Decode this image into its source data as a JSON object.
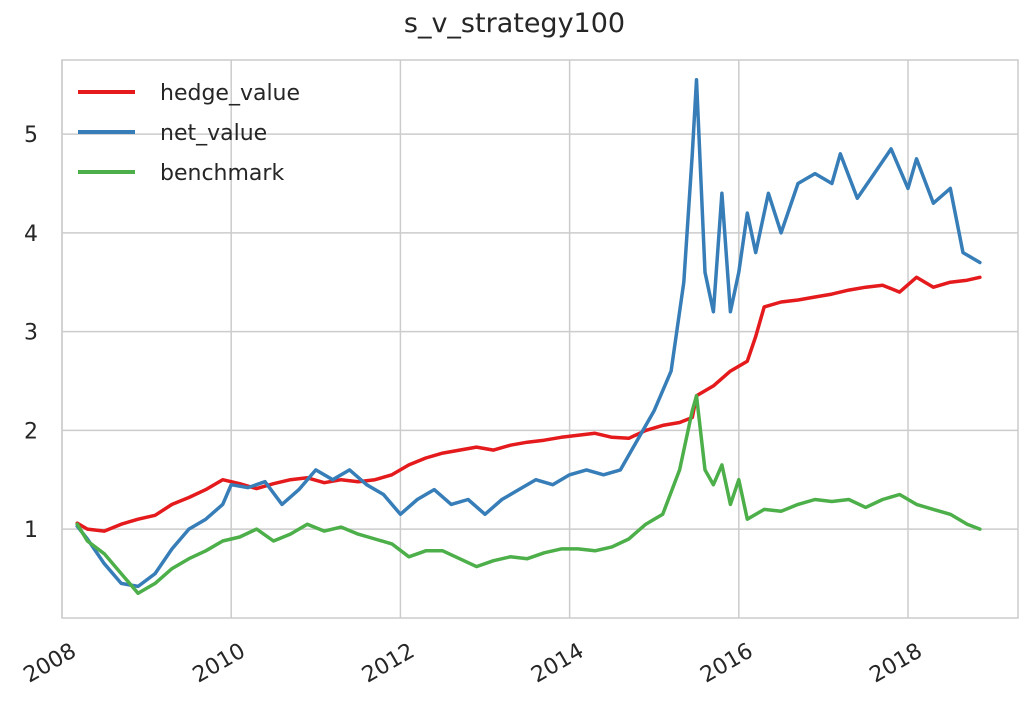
{
  "chart_data": {
    "type": "line",
    "title": "s_v_strategy100",
    "xlabel": "",
    "ylabel": "",
    "xlim": [
      2008,
      2019.3
    ],
    "ylim": [
      0.1,
      5.75
    ],
    "x_ticks": [
      2008,
      2010,
      2012,
      2014,
      2016,
      2018
    ],
    "x_tick_labels": [
      "2008",
      "2010",
      "2012",
      "2014",
      "2016",
      "2018"
    ],
    "y_ticks": [
      1,
      2,
      3,
      4,
      5
    ],
    "y_tick_labels": [
      "1",
      "2",
      "3",
      "4",
      "5"
    ],
    "grid": true,
    "legend_position": "top-left",
    "series": [
      {
        "name": "hedge_value",
        "color": "#e41a1c",
        "points": [
          [
            2008.18,
            1.06
          ],
          [
            2008.3,
            1.0
          ],
          [
            2008.5,
            0.98
          ],
          [
            2008.7,
            1.05
          ],
          [
            2008.9,
            1.1
          ],
          [
            2009.1,
            1.14
          ],
          [
            2009.3,
            1.25
          ],
          [
            2009.5,
            1.32
          ],
          [
            2009.7,
            1.4
          ],
          [
            2009.9,
            1.5
          ],
          [
            2010.1,
            1.46
          ],
          [
            2010.3,
            1.41
          ],
          [
            2010.5,
            1.46
          ],
          [
            2010.7,
            1.5
          ],
          [
            2010.9,
            1.52
          ],
          [
            2011.1,
            1.47
          ],
          [
            2011.3,
            1.5
          ],
          [
            2011.5,
            1.48
          ],
          [
            2011.7,
            1.5
          ],
          [
            2011.9,
            1.55
          ],
          [
            2012.1,
            1.65
          ],
          [
            2012.3,
            1.72
          ],
          [
            2012.5,
            1.77
          ],
          [
            2012.7,
            1.8
          ],
          [
            2012.9,
            1.83
          ],
          [
            2013.1,
            1.8
          ],
          [
            2013.3,
            1.85
          ],
          [
            2013.5,
            1.88
          ],
          [
            2013.7,
            1.9
          ],
          [
            2013.9,
            1.93
          ],
          [
            2014.1,
            1.95
          ],
          [
            2014.3,
            1.97
          ],
          [
            2014.5,
            1.93
          ],
          [
            2014.7,
            1.92
          ],
          [
            2014.9,
            2.0
          ],
          [
            2015.1,
            2.05
          ],
          [
            2015.3,
            2.08
          ],
          [
            2015.45,
            2.13
          ],
          [
            2015.5,
            2.35
          ],
          [
            2015.7,
            2.45
          ],
          [
            2015.9,
            2.6
          ],
          [
            2016.1,
            2.7
          ],
          [
            2016.2,
            2.95
          ],
          [
            2016.3,
            3.25
          ],
          [
            2016.5,
            3.3
          ],
          [
            2016.7,
            3.32
          ],
          [
            2016.9,
            3.35
          ],
          [
            2017.1,
            3.38
          ],
          [
            2017.3,
            3.42
          ],
          [
            2017.5,
            3.45
          ],
          [
            2017.7,
            3.47
          ],
          [
            2017.9,
            3.4
          ],
          [
            2018.1,
            3.55
          ],
          [
            2018.3,
            3.45
          ],
          [
            2018.5,
            3.5
          ],
          [
            2018.7,
            3.52
          ],
          [
            2018.85,
            3.55
          ]
        ]
      },
      {
        "name": "net_value",
        "color": "#377eb8",
        "points": [
          [
            2008.18,
            1.03
          ],
          [
            2008.3,
            0.9
          ],
          [
            2008.5,
            0.65
          ],
          [
            2008.7,
            0.45
          ],
          [
            2008.9,
            0.42
          ],
          [
            2009.1,
            0.55
          ],
          [
            2009.3,
            0.8
          ],
          [
            2009.5,
            1.0
          ],
          [
            2009.7,
            1.1
          ],
          [
            2009.9,
            1.25
          ],
          [
            2010.0,
            1.45
          ],
          [
            2010.2,
            1.42
          ],
          [
            2010.4,
            1.48
          ],
          [
            2010.6,
            1.25
          ],
          [
            2010.8,
            1.4
          ],
          [
            2011.0,
            1.6
          ],
          [
            2011.2,
            1.5
          ],
          [
            2011.4,
            1.6
          ],
          [
            2011.6,
            1.45
          ],
          [
            2011.8,
            1.35
          ],
          [
            2012.0,
            1.15
          ],
          [
            2012.2,
            1.3
          ],
          [
            2012.4,
            1.4
          ],
          [
            2012.6,
            1.25
          ],
          [
            2012.8,
            1.3
          ],
          [
            2013.0,
            1.15
          ],
          [
            2013.2,
            1.3
          ],
          [
            2013.4,
            1.4
          ],
          [
            2013.6,
            1.5
          ],
          [
            2013.8,
            1.45
          ],
          [
            2014.0,
            1.55
          ],
          [
            2014.2,
            1.6
          ],
          [
            2014.4,
            1.55
          ],
          [
            2014.6,
            1.6
          ],
          [
            2014.8,
            1.9
          ],
          [
            2015.0,
            2.2
          ],
          [
            2015.2,
            2.6
          ],
          [
            2015.35,
            3.5
          ],
          [
            2015.45,
            4.8
          ],
          [
            2015.5,
            5.55
          ],
          [
            2015.6,
            3.6
          ],
          [
            2015.7,
            3.2
          ],
          [
            2015.8,
            4.4
          ],
          [
            2015.9,
            3.2
          ],
          [
            2016.0,
            3.6
          ],
          [
            2016.1,
            4.2
          ],
          [
            2016.2,
            3.8
          ],
          [
            2016.35,
            4.4
          ],
          [
            2016.5,
            4.0
          ],
          [
            2016.7,
            4.5
          ],
          [
            2016.9,
            4.6
          ],
          [
            2017.1,
            4.5
          ],
          [
            2017.2,
            4.8
          ],
          [
            2017.4,
            4.35
          ],
          [
            2017.6,
            4.6
          ],
          [
            2017.8,
            4.85
          ],
          [
            2018.0,
            4.45
          ],
          [
            2018.1,
            4.75
          ],
          [
            2018.3,
            4.3
          ],
          [
            2018.5,
            4.45
          ],
          [
            2018.65,
            3.8
          ],
          [
            2018.85,
            3.7
          ]
        ]
      },
      {
        "name": "benchmark",
        "color": "#4daf4a",
        "points": [
          [
            2008.18,
            1.05
          ],
          [
            2008.3,
            0.88
          ],
          [
            2008.5,
            0.75
          ],
          [
            2008.7,
            0.55
          ],
          [
            2008.9,
            0.35
          ],
          [
            2009.1,
            0.45
          ],
          [
            2009.3,
            0.6
          ],
          [
            2009.5,
            0.7
          ],
          [
            2009.7,
            0.78
          ],
          [
            2009.9,
            0.88
          ],
          [
            2010.1,
            0.92
          ],
          [
            2010.3,
            1.0
          ],
          [
            2010.5,
            0.88
          ],
          [
            2010.7,
            0.95
          ],
          [
            2010.9,
            1.05
          ],
          [
            2011.1,
            0.98
          ],
          [
            2011.3,
            1.02
          ],
          [
            2011.5,
            0.95
          ],
          [
            2011.7,
            0.9
          ],
          [
            2011.9,
            0.85
          ],
          [
            2012.1,
            0.72
          ],
          [
            2012.3,
            0.78
          ],
          [
            2012.5,
            0.78
          ],
          [
            2012.7,
            0.7
          ],
          [
            2012.9,
            0.62
          ],
          [
            2013.1,
            0.68
          ],
          [
            2013.3,
            0.72
          ],
          [
            2013.5,
            0.7
          ],
          [
            2013.7,
            0.76
          ],
          [
            2013.9,
            0.8
          ],
          [
            2014.1,
            0.8
          ],
          [
            2014.3,
            0.78
          ],
          [
            2014.5,
            0.82
          ],
          [
            2014.7,
            0.9
          ],
          [
            2014.9,
            1.05
          ],
          [
            2015.1,
            1.15
          ],
          [
            2015.3,
            1.6
          ],
          [
            2015.45,
            2.2
          ],
          [
            2015.5,
            2.35
          ],
          [
            2015.6,
            1.6
          ],
          [
            2015.7,
            1.45
          ],
          [
            2015.8,
            1.65
          ],
          [
            2015.9,
            1.25
          ],
          [
            2016.0,
            1.5
          ],
          [
            2016.1,
            1.1
          ],
          [
            2016.3,
            1.2
          ],
          [
            2016.5,
            1.18
          ],
          [
            2016.7,
            1.25
          ],
          [
            2016.9,
            1.3
          ],
          [
            2017.1,
            1.28
          ],
          [
            2017.3,
            1.3
          ],
          [
            2017.5,
            1.22
          ],
          [
            2017.7,
            1.3
          ],
          [
            2017.9,
            1.35
          ],
          [
            2018.1,
            1.25
          ],
          [
            2018.3,
            1.2
          ],
          [
            2018.5,
            1.15
          ],
          [
            2018.7,
            1.05
          ],
          [
            2018.85,
            1.0
          ]
        ]
      }
    ]
  }
}
